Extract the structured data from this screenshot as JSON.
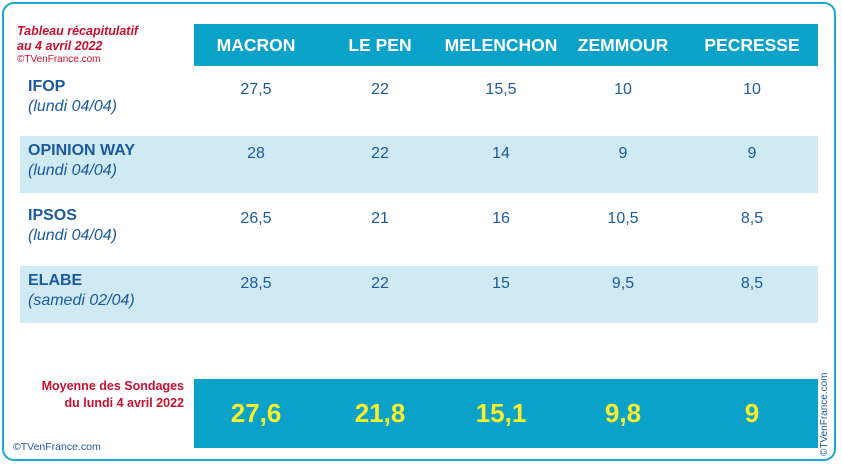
{
  "title": {
    "line1": "Tableau récapitulatif",
    "line2": "au 4 avril 2022",
    "copyright": "©TVenFrance.com"
  },
  "columns": [
    "MACRON",
    "LE PEN",
    "MELENCHON",
    "ZEMMOUR",
    "PECRESSE"
  ],
  "rows": [
    {
      "name": "IFOP",
      "date": "(lundi 04/04)",
      "values": [
        "27,5",
        "22",
        "15,5",
        "10",
        "10"
      ]
    },
    {
      "name": "OPINION WAY",
      "date": "(lundi 04/04)",
      "values": [
        "28",
        "22",
        "14",
        "9",
        "9"
      ]
    },
    {
      "name": "IPSOS",
      "date": "(lundi 04/04)",
      "values": [
        "26,5",
        "21",
        "16",
        "10,5",
        "8,5"
      ]
    },
    {
      "name": "ELABE",
      "date": "(samedi 02/04)",
      "values": [
        "28,5",
        "22",
        "15",
        "9,5",
        "8,5"
      ]
    }
  ],
  "average": {
    "label_line1": "Moyenne des Sondages",
    "label_line2": "du lundi 4 avril 2022",
    "values": [
      "27,6",
      "21,8",
      "15,1",
      "9,8",
      "9"
    ]
  },
  "footer": {
    "copyright_bottom": "©TVenFrance.com",
    "copyright_vertical": "©TVenFrance.com"
  },
  "colors": {
    "header_bg": "#0aa2c9",
    "row_shade": "#cfeaf3",
    "text_blue": "#1c5aa0",
    "title_red": "#c8102e",
    "average_yellow": "#f7ee2d",
    "border": "#1aa7d6"
  }
}
